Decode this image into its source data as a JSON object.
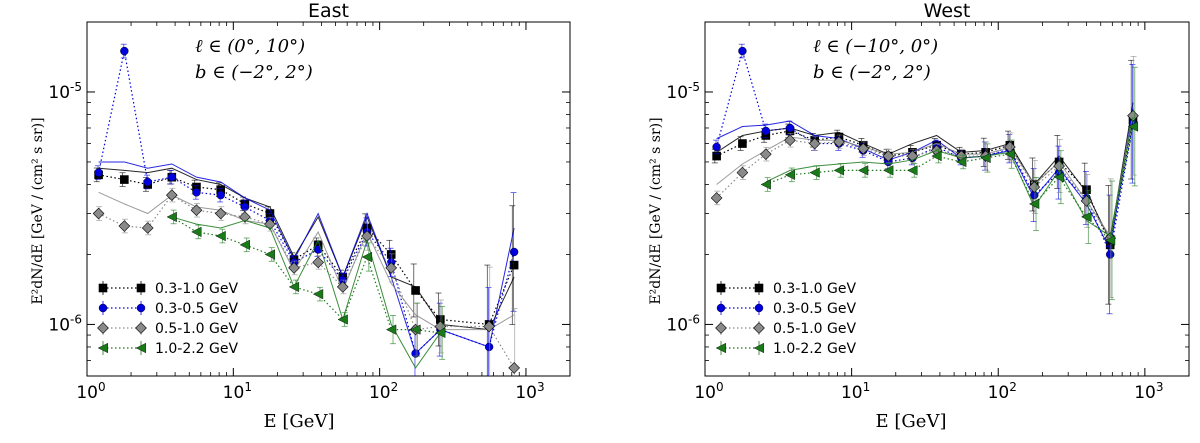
{
  "figure": {
    "x_axis_label": "E [GeV]",
    "y_axis_label": "E²dN/dE [GeV / (cm² s sr)]"
  },
  "chart_data": [
    {
      "type": "line",
      "title": "East",
      "annotation_lines": [
        "ℓ ∈ (0°, 10°)",
        "b ∈ (−2°, 2°)"
      ],
      "xlabel": "E [GeV]",
      "ylabel": "E²dN/dE [GeV / (cm² s sr)]",
      "xscale": "log",
      "yscale": "log",
      "xlim": [
        1,
        2000
      ],
      "ylim": [
        6e-07,
        2e-05
      ],
      "x_ticks": [
        1,
        10,
        100,
        1000
      ],
      "x_tick_labels": [
        "10^0",
        "10^1",
        "10^2",
        "10^3"
      ],
      "y_ticks": [
        1e-06,
        1e-05
      ],
      "y_tick_labels": [
        "10^-6",
        "10^-5"
      ],
      "legend_position": "lower-left",
      "series": [
        {
          "name": "0.3-1.0 GeV",
          "color": "#000000",
          "marker": "square",
          "x": [
            1.2,
            1.8,
            2.6,
            3.8,
            5.6,
            8.2,
            12,
            17.8,
            26,
            38,
            56,
            82,
            120,
            176,
            260,
            560,
            830
          ],
          "y": [
            4.4e-06,
            4.2e-06,
            4e-06,
            4.3e-06,
            3.9e-06,
            3.8e-06,
            3.3e-06,
            3e-06,
            1.9e-06,
            2.2e-06,
            1.6e-06,
            2.6e-06,
            2e-06,
            1.4e-06,
            1.05e-06,
            1e-06,
            1.8e-06
          ],
          "line": [
            4.7e-06,
            4.6e-06,
            4.5e-06,
            4.7e-06,
            4.2e-06,
            4e-06,
            3.5e-06,
            3.2e-06,
            1.95e-06,
            2.9e-06,
            1.6e-06,
            2.9e-06,
            1.6e-06,
            1.45e-06,
            1e-06,
            9.5e-07,
            1.6e-06
          ]
        },
        {
          "name": "0.3-0.5 GeV",
          "color": "#0000dd",
          "marker": "circle",
          "x": [
            1.2,
            1.8,
            2.6,
            3.8,
            5.6,
            8.2,
            12,
            17.8,
            26,
            38,
            56,
            82,
            120,
            176,
            260,
            560,
            830
          ],
          "y": [
            4.5e-06,
            1.5e-05,
            4.1e-06,
            4.3e-06,
            3.7e-06,
            3.6e-06,
            3.2e-06,
            2.8e-06,
            1.85e-06,
            2.1e-06,
            1.55e-06,
            2.5e-06,
            1.85e-06,
            7.5e-07,
            9.5e-07,
            8e-07,
            2.05e-06
          ],
          "line": [
            5e-06,
            5e-06,
            4.7e-06,
            4.9e-06,
            4.3e-06,
            4.1e-06,
            3.5e-06,
            3.1e-06,
            1.9e-06,
            3e-06,
            1.6e-06,
            3e-06,
            1.6e-06,
            7.5e-07,
            9.5e-07,
            8e-07,
            2.6e-06
          ]
        },
        {
          "name": "0.5-1.0 GeV",
          "color": "#8a8a8a",
          "marker": "diamond",
          "x": [
            1.2,
            1.8,
            2.6,
            3.8,
            5.6,
            8.2,
            12,
            17.8,
            26,
            38,
            56,
            82,
            120,
            176,
            260,
            560,
            830
          ],
          "y": [
            3e-06,
            2.65e-06,
            2.6e-06,
            3.6e-06,
            3.1e-06,
            3e-06,
            2.9e-06,
            2.7e-06,
            1.75e-06,
            1.85e-06,
            1.45e-06,
            2.4e-06,
            1.75e-06,
            9.5e-07,
            9.8e-07,
            9.8e-07,
            6.5e-07
          ],
          "line": [
            3.7e-06,
            3.3e-06,
            3e-06,
            3.6e-06,
            3.2e-06,
            3.1e-06,
            2.8e-06,
            2.7e-06,
            1.7e-06,
            2.5e-06,
            1.4e-06,
            2.5e-06,
            1.5e-06,
            1.1e-06,
            9.5e-07,
            9.5e-07,
            1.1e-06
          ]
        },
        {
          "name": "1.0-2.2 GeV",
          "color": "#1a7a1a",
          "marker": "triangle-left",
          "x": [
            3.8,
            5.6,
            8.2,
            12,
            17.8,
            26,
            38,
            56,
            82,
            120,
            176,
            260
          ],
          "y": [
            2.9e-06,
            2.5e-06,
            2.4e-06,
            2.2e-06,
            2e-06,
            1.45e-06,
            1.35e-06,
            1.05e-06,
            1.95e-06,
            9.5e-07,
            9.5e-07,
            9.2e-07
          ],
          "line": [
            2.9e-06,
            2.7e-06,
            2.6e-06,
            2.8e-06,
            2.6e-06,
            1.45e-06,
            2.3e-06,
            1.05e-06,
            2.3e-06,
            1e-06,
            6.5e-07,
            9.2e-07
          ]
        }
      ]
    },
    {
      "type": "line",
      "title": "West",
      "annotation_lines": [
        "ℓ ∈ (−10°, 0°)",
        "b ∈ (−2°, 2°)"
      ],
      "xlabel": "E [GeV]",
      "ylabel": "E²dN/dE [GeV / (cm² s sr)]",
      "xscale": "log",
      "yscale": "log",
      "xlim": [
        1,
        2000
      ],
      "ylim": [
        6e-07,
        2e-05
      ],
      "x_ticks": [
        1,
        10,
        100,
        1000
      ],
      "x_tick_labels": [
        "10^0",
        "10^1",
        "10^2",
        "10^3"
      ],
      "y_ticks": [
        1e-06,
        1e-05
      ],
      "y_tick_labels": [
        "10^-6",
        "10^-5"
      ],
      "legend_position": "lower-left",
      "series": [
        {
          "name": "0.3-1.0 GeV",
          "color": "#000000",
          "marker": "square",
          "x": [
            1.2,
            1.8,
            2.6,
            3.8,
            5.6,
            8.2,
            12,
            17.8,
            26,
            38,
            56,
            82,
            120,
            176,
            260,
            400,
            580,
            830
          ],
          "y": [
            5.3e-06,
            6e-06,
            6.5e-06,
            6.8e-06,
            6.2e-06,
            6.4e-06,
            5.9e-06,
            5.3e-06,
            5.5e-06,
            5.9e-06,
            5.4e-06,
            5.5e-06,
            5.9e-06,
            4e-06,
            5e-06,
            3.8e-06,
            2.2e-06,
            7.6e-06
          ],
          "line": [
            5.5e-06,
            6.5e-06,
            6.8e-06,
            7e-06,
            6.5e-06,
            6.7e-06,
            6e-06,
            5.4e-06,
            6e-06,
            6.5e-06,
            5.5e-06,
            5.6e-06,
            6e-06,
            4e-06,
            5.3e-06,
            3.7e-06,
            2.3e-06,
            9e-06
          ]
        },
        {
          "name": "0.3-0.5 GeV",
          "color": "#0000dd",
          "marker": "circle",
          "x": [
            1.2,
            1.8,
            2.6,
            3.8,
            5.6,
            8.2,
            12,
            17.8,
            26,
            38,
            56,
            82,
            120,
            176,
            260,
            400,
            580,
            830
          ],
          "y": [
            5.8e-06,
            1.5e-05,
            6.8e-06,
            7e-06,
            6e-06,
            6e-06,
            5.6e-06,
            5e-06,
            5.2e-06,
            5.8e-06,
            5.2e-06,
            5.3e-06,
            5.7e-06,
            3.6e-06,
            4.5e-06,
            3.5e-06,
            2e-06,
            7.3e-06
          ],
          "line": [
            6.3e-06,
            7.1e-06,
            7.2e-06,
            7.5e-06,
            6.5e-06,
            6.3e-06,
            5.7e-06,
            5.1e-06,
            5.5e-06,
            6.2e-06,
            5.2e-06,
            5.3e-06,
            5.6e-06,
            3.5e-06,
            4.7e-06,
            3.3e-06,
            2.1e-06,
            8.5e-06
          ]
        },
        {
          "name": "0.5-1.0 GeV",
          "color": "#8a8a8a",
          "marker": "diamond",
          "x": [
            1.2,
            1.8,
            2.6,
            3.8,
            5.6,
            8.2,
            12,
            17.8,
            26,
            38,
            56,
            82,
            120,
            176,
            260,
            400,
            580,
            830
          ],
          "y": [
            3.5e-06,
            4.5e-06,
            5.4e-06,
            6.2e-06,
            6e-06,
            6.1e-06,
            5.7e-06,
            5.3e-06,
            5.3e-06,
            5.6e-06,
            5.3e-06,
            5.3e-06,
            5.8e-06,
            3.9e-06,
            4.8e-06,
            3.4e-06,
            2.35e-06,
            7.9e-06
          ],
          "line": [
            4e-06,
            4.9e-06,
            5.6e-06,
            6.4e-06,
            6.2e-06,
            6.2e-06,
            5.8e-06,
            5.4e-06,
            5.5e-06,
            6e-06,
            5.4e-06,
            5.4e-06,
            5.8e-06,
            4e-06,
            5e-06,
            3.4e-06,
            2.4e-06,
            8e-06
          ]
        },
        {
          "name": "1.0-2.2 GeV",
          "color": "#1a7a1a",
          "marker": "triangle-left",
          "x": [
            2.6,
            3.8,
            5.6,
            8.2,
            12,
            17.8,
            26,
            38,
            56,
            82,
            120,
            176,
            260,
            400,
            580,
            830
          ],
          "y": [
            4e-06,
            4.4e-06,
            4.5e-06,
            4.6e-06,
            4.6e-06,
            4.6e-06,
            4.6e-06,
            5.3e-06,
            5e-06,
            5.2e-06,
            5.4e-06,
            3.3e-06,
            4.3e-06,
            2.9e-06,
            2.3e-06,
            7.1e-06
          ],
          "line": [
            4.1e-06,
            4.6e-06,
            4.8e-06,
            4.9e-06,
            5e-06,
            4.9e-06,
            5.1e-06,
            5.6e-06,
            5.2e-06,
            5.3e-06,
            5.5e-06,
            3.2e-06,
            4.6e-06,
            2.8e-06,
            2.4e-06,
            7.8e-06
          ]
        }
      ]
    }
  ]
}
